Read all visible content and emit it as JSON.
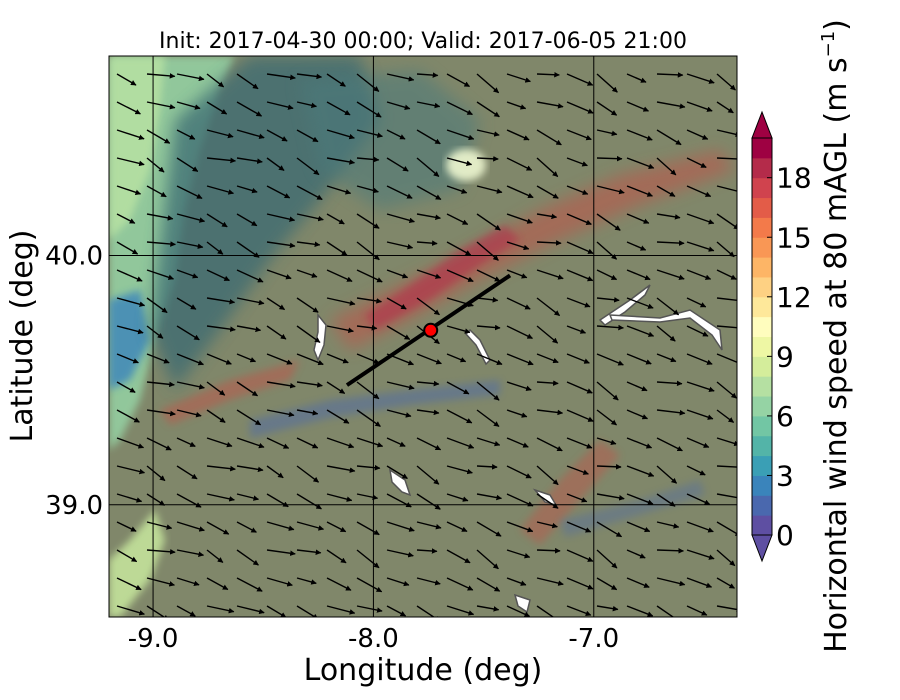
{
  "chart_data": {
    "type": "heatmap",
    "title": "Init: 2017-04-30 00:00; Valid: 2017-06-05 21:00",
    "xlabel": "Longitude (deg)",
    "ylabel": "Latitude (deg)",
    "xlim": [
      -9.2,
      -6.35
    ],
    "ylim": [
      38.55,
      40.8
    ],
    "x_ticks": [
      -9.0,
      -8.0,
      -7.0
    ],
    "x_tick_labels": [
      "-9.0",
      "-8.0",
      "-7.0"
    ],
    "y_ticks": [
      39.0,
      40.0
    ],
    "y_tick_labels": [
      "39.0",
      "40.0"
    ],
    "grid": true,
    "colorbar": {
      "label": "Horizontal wind speed at 80 mAGL (m s",
      "label_sup": "−1",
      "label_end": ")",
      "range": [
        0,
        20
      ],
      "ticks": [
        0,
        3,
        6,
        9,
        12,
        15,
        18
      ],
      "tick_labels": [
        "0",
        "3",
        "6",
        "9",
        "12",
        "15",
        "18"
      ],
      "extend": "both",
      "colors": [
        "#5e4fa2",
        "#4a68ae",
        "#3a84bb",
        "#3a9fb5",
        "#53b4a8",
        "#72c6a4",
        "#95d3a4",
        "#b5e0a2",
        "#d4ed9b",
        "#eef7a4",
        "#fffdbe",
        "#fee89a",
        "#fed183",
        "#fdb566",
        "#f99755",
        "#f37a4a",
        "#e35c48",
        "#d0434e",
        "#b42b4a",
        "#9e0142"
      ]
    },
    "transect": {
      "start": [
        -8.12,
        39.48
      ],
      "end": [
        -7.38,
        39.92
      ]
    },
    "site": {
      "lon": -7.74,
      "lat": 39.7
    },
    "wind_vectors": "arrows pointing toward the east-southeast across the domain"
  }
}
